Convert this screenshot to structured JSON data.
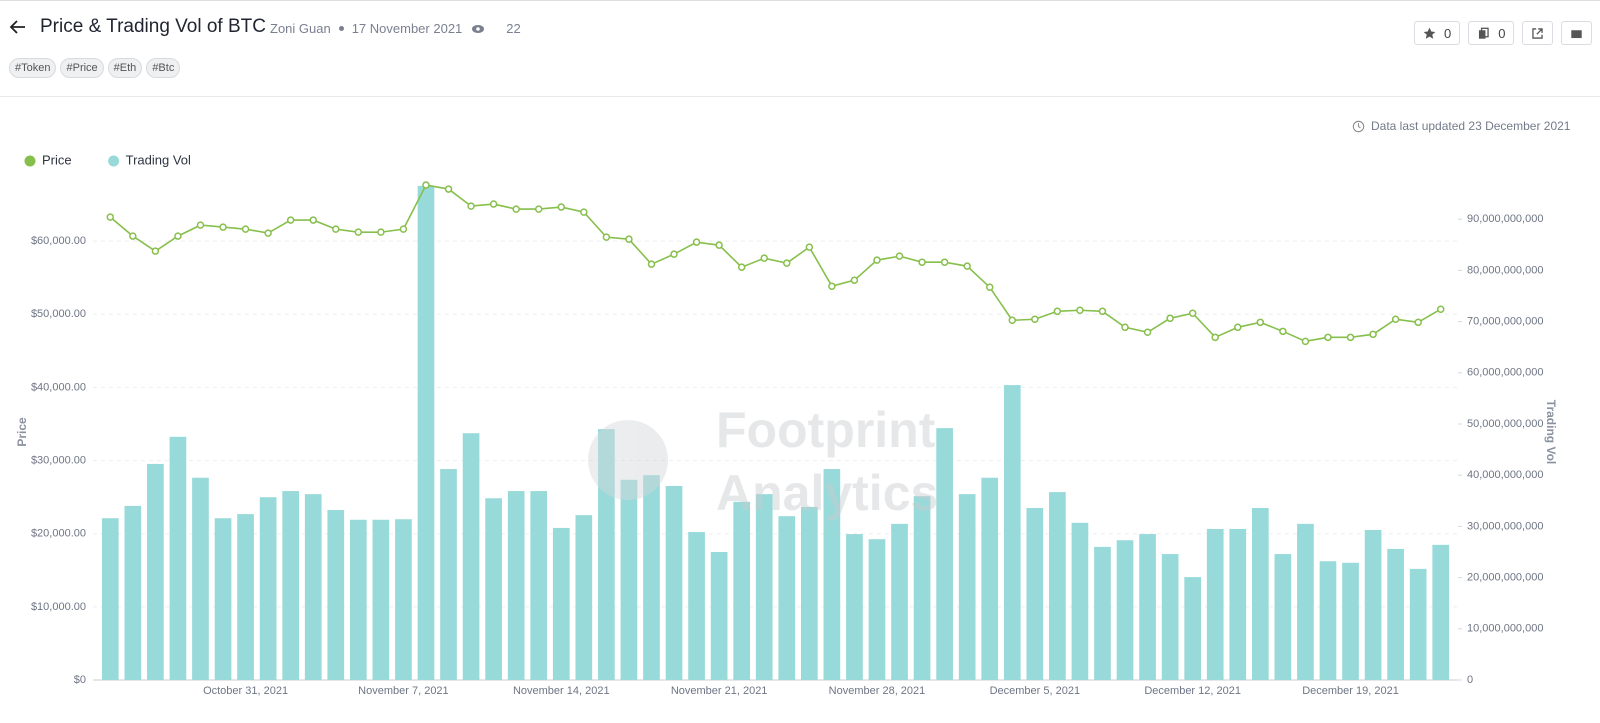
{
  "header": {
    "title": "Price & Trading Vol of BTC",
    "author": "Zoni Guan",
    "date": "17 November 2021",
    "views": "22",
    "tags": [
      "#Token",
      "#Price",
      "#Eth",
      "#Btc"
    ],
    "star_count": "0",
    "copy_count": "0"
  },
  "updated": "Data last updated 23 December 2021",
  "watermark": [
    "Footprint",
    "Analytics"
  ],
  "chart_data": {
    "type": "combo",
    "grid": true,
    "legend_position": "top-left",
    "y_label": "Price",
    "y2_label": "Trading Vol",
    "categories": [
      null,
      null,
      null,
      null,
      null,
      null,
      "October 31, 2021",
      null,
      null,
      null,
      null,
      null,
      null,
      "November 7, 2021",
      null,
      null,
      null,
      null,
      null,
      null,
      "November 14, 2021",
      null,
      null,
      null,
      null,
      null,
      null,
      "November 21, 2021",
      null,
      null,
      null,
      null,
      null,
      null,
      "November 28, 2021",
      null,
      null,
      null,
      null,
      null,
      null,
      "December 5, 2021",
      null,
      null,
      null,
      null,
      null,
      null,
      "December 12, 2021",
      null,
      null,
      null,
      null,
      null,
      null,
      "December 19, 2021",
      null,
      null,
      null,
      null
    ],
    "ylim": [
      0,
      70000
    ],
    "yticks": [
      {
        "value": 0,
        "label": "$0"
      },
      {
        "value": 10000,
        "label": "$10,000.00"
      },
      {
        "value": 20000,
        "label": "$20,000.00"
      },
      {
        "value": 30000,
        "label": "$30,000.00"
      },
      {
        "value": 40000,
        "label": "$40,000.00"
      },
      {
        "value": 50000,
        "label": "$50,000.00"
      },
      {
        "value": 60000,
        "label": "$60,000.00"
      }
    ],
    "y2lim": [
      0,
      100000000000
    ],
    "y2ticks": [
      0,
      {
        "value": 10000000000,
        "label": "10,000,000,000"
      },
      {
        "value": 20000000000,
        "label": "20,000,000,000"
      },
      {
        "value": 30000000000,
        "label": "30,000,000,000"
      },
      {
        "value": 40000000000,
        "label": "40,000,000,000"
      },
      {
        "value": 50000000000,
        "label": "50,000,000,000"
      },
      {
        "value": 60000000000,
        "label": "60,000,000,000"
      },
      {
        "value": 70000000000,
        "label": "70,000,000,000"
      },
      {
        "value": 80000000000,
        "label": "80,000,000,000"
      },
      {
        "value": 90000000000,
        "label": "90,000,000,000"
      }
    ],
    "series": [
      {
        "name": "Price",
        "type": "line",
        "color": "#86bf4b",
        "values": [
          63290,
          60690,
          58630,
          60690,
          62190,
          61920,
          61640,
          61100,
          62880,
          62880,
          61640,
          61230,
          61230,
          61640,
          67670,
          67120,
          64790,
          65070,
          64380,
          64380,
          64660,
          63970,
          60550,
          60270,
          56850,
          58220,
          59860,
          59450,
          56440,
          57670,
          56990,
          59180,
          53840,
          54660,
          57400,
          57950,
          57120,
          57120,
          56580,
          53700,
          49180,
          49320,
          50410,
          50550,
          50410,
          48220,
          47540,
          49450,
          50140,
          46850,
          48220,
          48900,
          47670,
          46300,
          46850,
          46850,
          47260,
          49320,
          48900,
          50690
        ]
      },
      {
        "name": "Trading Vol",
        "type": "bar",
        "axis": "y2",
        "color": "#98dada",
        "values": [
          31600000000,
          34000000000,
          42200000000,
          47500000000,
          39500000000,
          31600000000,
          32400000000,
          35700000000,
          36900000000,
          36300000000,
          33200000000,
          31300000000,
          31300000000,
          31400000000,
          96500000000,
          41200000000,
          48200000000,
          35500000000,
          36900000000,
          36900000000,
          29700000000,
          32200000000,
          49000000000,
          39100000000,
          40000000000,
          37900000000,
          28900000000,
          25000000000,
          34800000000,
          36300000000,
          32000000000,
          33800000000,
          41200000000,
          28500000000,
          27500000000,
          30500000000,
          35900000000,
          49200000000,
          36300000000,
          39500000000,
          57600000000,
          33600000000,
          36700000000,
          30700000000,
          26000000000,
          27300000000,
          28500000000,
          24600000000,
          20100000000,
          29500000000,
          29500000000,
          33600000000,
          24600000000,
          30500000000,
          23200000000,
          22900000000,
          29300000000,
          25600000000,
          21700000000,
          26400000000
        ]
      }
    ]
  }
}
